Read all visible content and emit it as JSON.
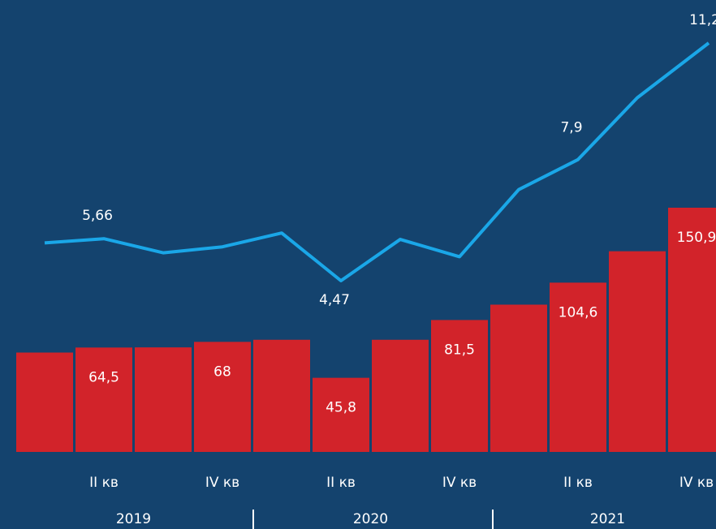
{
  "chart_data": {
    "type": "bar_line",
    "categories": [
      null,
      "II кв",
      null,
      "IV кв",
      null,
      "II кв",
      null,
      "IV кв",
      null,
      "II кв",
      null,
      "IV кв"
    ],
    "groups": [
      "2019",
      "2020",
      "2021"
    ],
    "series": [
      {
        "type": "bar",
        "color": "#d2232a",
        "values": [
          61.4,
          64.5,
          64.6,
          68,
          69.3,
          45.8,
          69.3,
          81.5,
          91,
          104.6,
          124,
          150.9
        ],
        "value_labels": [
          null,
          "64,5",
          null,
          "68",
          null,
          "45,8",
          null,
          "81,5",
          null,
          "104,6",
          null,
          "150,9"
        ]
      },
      {
        "type": "line",
        "color": "#1aa7e8",
        "values": [
          5.54,
          5.66,
          5.26,
          5.43,
          5.82,
          4.47,
          5.64,
          5.15,
          7.05,
          7.9,
          9.65,
          11.2
        ],
        "value_labels": [
          null,
          "5,66",
          null,
          null,
          null,
          "4,47",
          null,
          null,
          null,
          "7,9",
          null,
          "11,2"
        ]
      }
    ]
  }
}
